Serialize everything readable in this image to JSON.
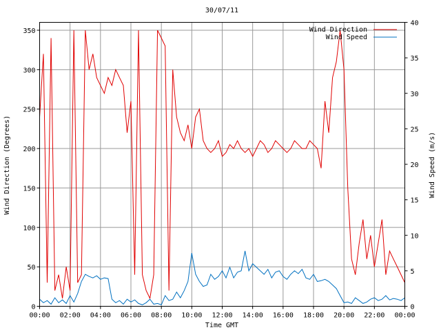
{
  "chart_data": {
    "type": "line",
    "title": "30/07/11",
    "xlabel": "Time GMT",
    "ylabel_left": "Wind Direction (Degrees)",
    "ylabel_right": "Wind Speed (m/s)",
    "x_ticks": [
      "00:00",
      "02:00",
      "04:00",
      "06:00",
      "08:00",
      "10:00",
      "12:00",
      "14:00",
      "16:00",
      "18:00",
      "20:00",
      "22:00",
      "00:00"
    ],
    "x_range_hours": [
      0,
      24
    ],
    "y_left": {
      "range": [
        0,
        360
      ],
      "ticks": [
        0,
        50,
        100,
        150,
        200,
        250,
        300,
        350
      ]
    },
    "y_right": {
      "range": [
        0,
        40
      ],
      "ticks": [
        0,
        5,
        10,
        15,
        20,
        25,
        30,
        35,
        40
      ]
    },
    "grid": true,
    "legend_position": "top-right",
    "series": [
      {
        "name": "Wind Direction",
        "axis": "left",
        "color": "#e00000",
        "x_hours": [
          0,
          0.25,
          0.5,
          0.75,
          1,
          1.25,
          1.5,
          1.75,
          2,
          2.25,
          2.5,
          2.75,
          3,
          3.25,
          3.5,
          3.75,
          4,
          4.25,
          4.5,
          4.75,
          5,
          5.25,
          5.5,
          5.75,
          6,
          6.25,
          6.5,
          6.75,
          7,
          7.25,
          7.5,
          7.75,
          8,
          8.25,
          8.5,
          8.75,
          9,
          9.25,
          9.5,
          9.75,
          10,
          10.25,
          10.5,
          10.75,
          11,
          11.25,
          11.5,
          11.75,
          12,
          12.25,
          12.5,
          12.75,
          13,
          13.25,
          13.5,
          13.75,
          14,
          14.25,
          14.5,
          14.75,
          15,
          15.25,
          15.5,
          15.75,
          16,
          16.25,
          16.5,
          16.75,
          17,
          17.25,
          17.5,
          17.75,
          18,
          18.25,
          18.5,
          18.75,
          19,
          19.25,
          19.5,
          19.75,
          20,
          20.25,
          20.5,
          20.75,
          21,
          21.25,
          21.5,
          21.75,
          22,
          22.25,
          22.5,
          22.75,
          23,
          23.25,
          23.5,
          23.75,
          24
        ],
        "values": [
          240,
          320,
          30,
          340,
          20,
          40,
          10,
          50,
          20,
          350,
          30,
          40,
          350,
          300,
          320,
          290,
          280,
          270,
          290,
          280,
          300,
          290,
          280,
          220,
          260,
          40,
          350,
          40,
          20,
          10,
          40,
          350,
          340,
          330,
          20,
          300,
          240,
          220,
          210,
          230,
          200,
          240,
          250,
          210,
          200,
          195,
          200,
          210,
          190,
          195,
          205,
          200,
          210,
          200,
          195,
          200,
          190,
          200,
          210,
          205,
          195,
          200,
          210,
          205,
          200,
          195,
          200,
          210,
          205,
          200,
          200,
          210,
          205,
          200,
          175,
          260,
          220,
          290,
          310,
          350,
          300,
          150,
          60,
          40,
          80,
          110,
          60,
          90,
          50,
          80,
          110,
          40,
          70,
          60,
          50,
          40,
          30
        ]
      },
      {
        "name": "Wind Speed",
        "axis": "right",
        "color": "#0070c0",
        "x_hours": [
          0,
          0.25,
          0.5,
          0.75,
          1,
          1.25,
          1.5,
          1.75,
          2,
          2.25,
          2.5,
          2.75,
          3,
          3.25,
          3.5,
          3.75,
          4,
          4.25,
          4.5,
          4.75,
          5,
          5.25,
          5.5,
          5.75,
          6,
          6.25,
          6.5,
          6.75,
          7,
          7.25,
          7.5,
          7.75,
          8,
          8.25,
          8.5,
          8.75,
          9,
          9.25,
          9.5,
          9.75,
          10,
          10.25,
          10.5,
          10.75,
          11,
          11.25,
          11.5,
          11.75,
          12,
          12.25,
          12.5,
          12.75,
          13,
          13.25,
          13.5,
          13.75,
          14,
          14.25,
          14.5,
          14.75,
          15,
          15.25,
          15.5,
          15.75,
          16,
          16.25,
          16.5,
          16.75,
          17,
          17.25,
          17.5,
          17.75,
          18,
          18.25,
          18.5,
          18.75,
          19,
          19.25,
          19.5,
          19.75,
          20,
          20.25,
          20.5,
          20.75,
          21,
          21.25,
          21.5,
          21.75,
          22,
          22.25,
          22.5,
          22.75,
          23,
          23.25,
          23.5,
          23.75,
          24
        ],
        "values": [
          1,
          0.5,
          0.8,
          0.3,
          1.2,
          0.5,
          0.9,
          0.4,
          1.5,
          0.6,
          1.8,
          3.5,
          4.5,
          4.2,
          4.0,
          4.3,
          3.8,
          4.0,
          3.9,
          1.0,
          0.5,
          0.8,
          0.3,
          1.0,
          0.6,
          0.9,
          0.4,
          0.2,
          0.5,
          1.0,
          0.3,
          0.4,
          0.2,
          1.5,
          0.8,
          1.0,
          2.0,
          1.2,
          2.2,
          3.5,
          7.5,
          4.5,
          3.5,
          2.8,
          3.0,
          4.5,
          3.8,
          4.2,
          5.0,
          4.0,
          5.5,
          4.0,
          4.8,
          5.0,
          7.8,
          5.0,
          6.0,
          5.5,
          5.0,
          4.5,
          5.2,
          4.0,
          4.8,
          5.0,
          4.2,
          3.8,
          4.5,
          5.0,
          4.6,
          5.2,
          4.0,
          3.8,
          4.5,
          3.5,
          3.6,
          3.8,
          3.5,
          3.0,
          2.5,
          1.5,
          0.5,
          0.6,
          0.4,
          1.2,
          0.8,
          0.4,
          0.6,
          1.0,
          1.2,
          0.8,
          1.0,
          1.5,
          0.9,
          1.1,
          1.0,
          0.8,
          1.2
        ]
      }
    ]
  }
}
